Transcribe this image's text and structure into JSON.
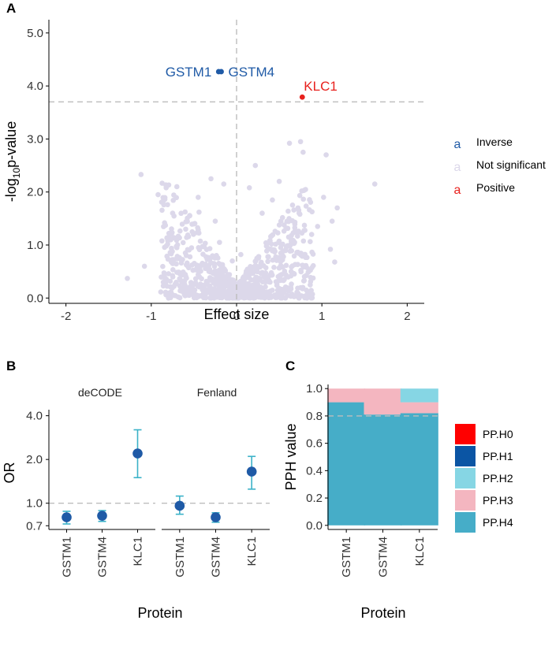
{
  "colors": {
    "inverse": "#1f5aa6",
    "positive": "#e8211d",
    "not_significant": "#dcd8ea",
    "errorbar": "#3bb2c8",
    "pp_h0": "#ff0000",
    "pp_h1": "#0b55a4",
    "pp_h2": "#86d6e4",
    "pp_h3": "#f4b6c0",
    "pp_h4": "#46adc8"
  },
  "panels": {
    "a": "A",
    "b": "B",
    "c": "C"
  },
  "chart_data": [
    {
      "id": "A",
      "type": "scatter",
      "xlabel": "Effect size",
      "ylabel_main": "-log",
      "ylabel_sub": "10",
      "ylabel_rest": "p-value",
      "xlim": [
        -2.2,
        2.2
      ],
      "ylim": [
        -0.1,
        5.25
      ],
      "xticks": [
        -2,
        -1,
        0,
        1,
        2
      ],
      "xtick_labels": [
        "-2",
        "-1",
        "0",
        "1",
        "2"
      ],
      "yticks": [
        0,
        1,
        2,
        3,
        4,
        5
      ],
      "ytick_labels": [
        "0.0",
        "1.0",
        "2.0",
        "3.0",
        "4.0",
        "5.0"
      ],
      "threshold_y": 3.7,
      "vline_x": 0,
      "legend": [
        {
          "label": "Inverse",
          "glyph": "a",
          "color_key": "inverse"
        },
        {
          "label": "Not significant",
          "glyph": "a",
          "color_key": "not_significant"
        },
        {
          "label": "Positive",
          "glyph": "a",
          "color_key": "positive"
        }
      ],
      "highlighted": [
        {
          "label": "GSTM1",
          "x": -0.21,
          "y": 4.27,
          "group": "inverse",
          "label_side": "left"
        },
        {
          "label": "GSTM4",
          "x": -0.18,
          "y": 4.27,
          "group": "inverse",
          "label_side": "right"
        },
        {
          "label": "KLC1",
          "x": 0.77,
          "y": 3.79,
          "group": "positive",
          "label_side": "top"
        }
      ],
      "background_points": [
        [
          -1.28,
          0.37
        ],
        [
          -1.12,
          2.33
        ],
        [
          -1.08,
          0.6
        ],
        [
          -0.92,
          1.95
        ],
        [
          -0.85,
          0.42
        ],
        [
          -0.7,
          2.1
        ],
        [
          -0.6,
          0.85
        ],
        [
          -0.55,
          1.55
        ],
        [
          -0.45,
          1.9
        ],
        [
          -0.38,
          0.62
        ],
        [
          -0.3,
          2.25
        ],
        [
          -0.25,
          1.45
        ],
        [
          -0.2,
          1.05
        ],
        [
          -0.15,
          2.15
        ],
        [
          0.15,
          2.08
        ],
        [
          0.22,
          2.5
        ],
        [
          0.3,
          1.6
        ],
        [
          0.35,
          0.98
        ],
        [
          0.42,
          1.85
        ],
        [
          0.5,
          2.2
        ],
        [
          0.55,
          0.78
        ],
        [
          0.62,
          2.92
        ],
        [
          0.68,
          1.05
        ],
        [
          0.72,
          1.7
        ],
        [
          0.75,
          2.95
        ],
        [
          0.78,
          2.75
        ],
        [
          0.82,
          0.58
        ],
        [
          0.88,
          1.2
        ],
        [
          0.95,
          1.35
        ],
        [
          1.02,
          1.9
        ],
        [
          1.05,
          2.7
        ],
        [
          1.1,
          0.92
        ],
        [
          1.12,
          1.45
        ],
        [
          1.18,
          1.7
        ],
        [
          1.15,
          0.68
        ],
        [
          1.62,
          2.15
        ],
        [
          -0.68,
          1.15
        ],
        [
          -0.52,
          1.25
        ],
        [
          -0.44,
          1.62
        ],
        [
          0.52,
          1.45
        ],
        [
          0.61,
          1.15
        ],
        [
          0.45,
          0.88
        ],
        [
          -0.62,
          0.45
        ],
        [
          0.64,
          0.5
        ],
        [
          -0.05,
          0.7
        ],
        [
          0.05,
          0.82
        ]
      ]
    },
    {
      "id": "B",
      "type": "scatter",
      "subtype": "point-range",
      "facets": [
        "deCODE",
        "Fenland"
      ],
      "categories": [
        "GSTM1",
        "GSTM4",
        "KLC1"
      ],
      "xlabel": "Protein",
      "ylabel": "OR",
      "y_scale": "log",
      "ylim": [
        0.66,
        4.4
      ],
      "yticks": [
        0.7,
        1.0,
        2.0,
        4.0
      ],
      "ytick_labels": [
        "0.7",
        "1.0",
        "2.0",
        "4.0"
      ],
      "reference_y": 1.0,
      "series": [
        {
          "name": "deCODE",
          "or": [
            0.8,
            0.82,
            2.2
          ],
          "lower": [
            0.72,
            0.75,
            1.5
          ],
          "upper": [
            0.88,
            0.89,
            3.2
          ]
        },
        {
          "name": "Fenland",
          "or": [
            0.96,
            0.8,
            1.65
          ],
          "lower": [
            0.84,
            0.74,
            1.25
          ],
          "upper": [
            1.12,
            0.86,
            2.1
          ]
        }
      ]
    },
    {
      "id": "C",
      "type": "bar",
      "subtype": "stacked",
      "xlabel": "Protein",
      "ylabel": "PPH value",
      "categories": [
        "GSTM1",
        "GSTM4",
        "KLC1"
      ],
      "ylim": [
        -0.03,
        1.03
      ],
      "yticks": [
        0,
        0.2,
        0.4,
        0.6,
        0.8,
        1.0
      ],
      "ytick_labels": [
        "0.0",
        "0.2",
        "0.4",
        "0.6",
        "0.8",
        "1.0"
      ],
      "reference_y": 0.8,
      "series": [
        {
          "name": "PP.H0",
          "color_key": "pp_h0",
          "values": [
            0,
            0,
            0
          ]
        },
        {
          "name": "PP.H1",
          "color_key": "pp_h1",
          "values": [
            0,
            0,
            0
          ]
        },
        {
          "name": "PP.H2",
          "color_key": "pp_h2",
          "values": [
            0,
            0,
            0.1
          ]
        },
        {
          "name": "PP.H3",
          "color_key": "pp_h3",
          "values": [
            0.1,
            0.19,
            0.08
          ]
        },
        {
          "name": "PP.H4",
          "color_key": "pp_h4",
          "values": [
            0.9,
            0.81,
            0.82
          ]
        }
      ]
    }
  ]
}
